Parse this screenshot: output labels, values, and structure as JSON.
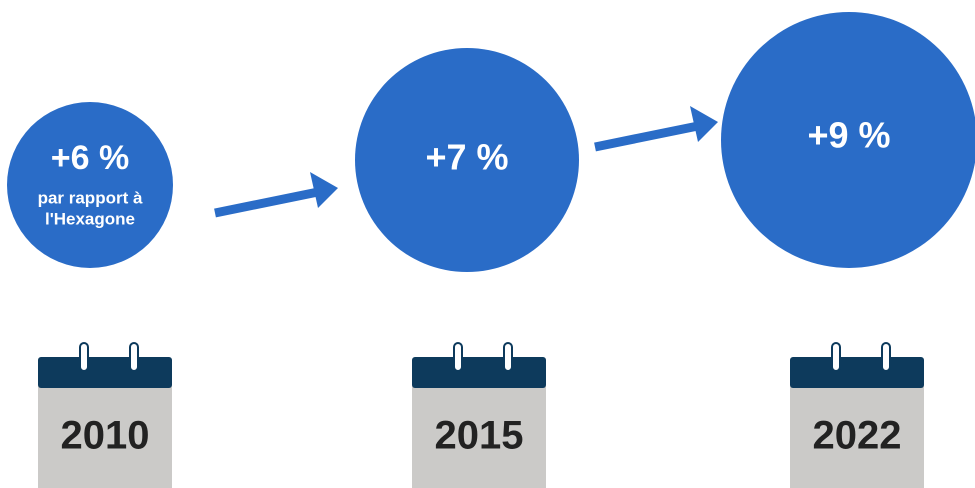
{
  "items": [
    {
      "value": "+6 %",
      "note_lines": [
        "par rapport à",
        "l'Hexagone"
      ],
      "year": "2010"
    },
    {
      "value": "+7 %",
      "year": "2015"
    },
    {
      "value": "+9 %",
      "year": "2022"
    }
  ]
}
